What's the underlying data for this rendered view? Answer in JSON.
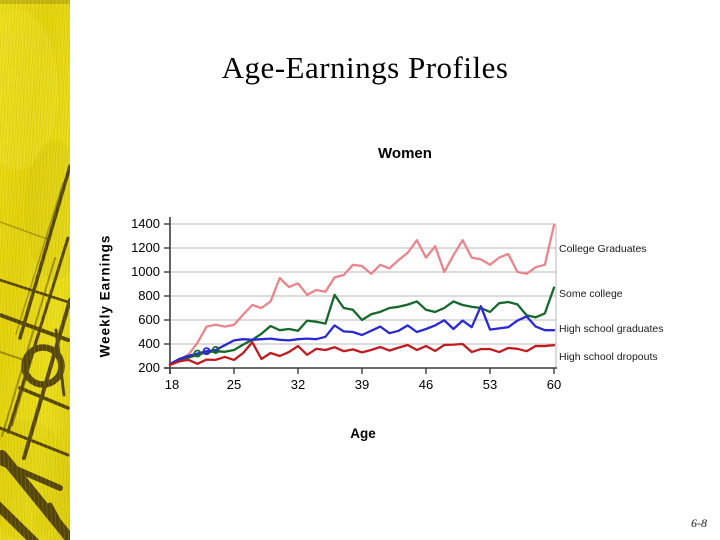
{
  "slide": {
    "title": "Age-Earnings Profiles",
    "page_number": "6-8"
  },
  "colors": {
    "slide_background": "#ffffff",
    "strip_yellow": "#e7d60f",
    "strip_line": "#342507",
    "gridline": "#b9b9b9",
    "axis": "#3c3c3c",
    "legend_text": "#1a1a1a"
  },
  "chart_data": {
    "type": "line",
    "title": "Women",
    "xlabel": "Age",
    "ylabel": "Weekly Earnings",
    "xlim": [
      18,
      60
    ],
    "ylim": [
      200,
      1400
    ],
    "x_ticks": [
      18,
      25,
      32,
      39,
      46,
      53,
      60
    ],
    "y_ticks": [
      1400,
      1200,
      1000,
      800,
      600,
      400,
      200
    ],
    "grid": "horizontal",
    "legend_position": "right-of-plot",
    "ages_start": 18,
    "series": [
      {
        "name": "College Graduates",
        "color": "#E9858B",
        "values": [
          230,
          270,
          310,
          410,
          545,
          560,
          545,
          560,
          645,
          725,
          700,
          755,
          950,
          875,
          905,
          810,
          850,
          835,
          955,
          975,
          1060,
          1050,
          985,
          1060,
          1030,
          1100,
          1160,
          1265,
          1120,
          1215,
          1000,
          1140,
          1265,
          1120,
          1105,
          1060,
          1120,
          1150,
          1000,
          985,
          1040,
          1060,
          1390
        ]
      },
      {
        "name": "Some college",
        "color": "#17682C",
        "values": [
          228,
          258,
          285,
          310,
          330,
          340,
          335,
          350,
          395,
          435,
          485,
          550,
          515,
          525,
          510,
          595,
          585,
          570,
          810,
          700,
          685,
          600,
          648,
          668,
          700,
          710,
          728,
          755,
          685,
          667,
          700,
          755,
          725,
          710,
          700,
          667,
          740,
          750,
          730,
          640,
          622,
          655,
          870
        ]
      },
      {
        "name": "High school graduates",
        "color": "#2A2AD4",
        "values": [
          232,
          275,
          300,
          320,
          340,
          350,
          390,
          430,
          440,
          435,
          440,
          445,
          435,
          430,
          440,
          445,
          440,
          460,
          555,
          505,
          500,
          475,
          510,
          545,
          490,
          510,
          555,
          500,
          525,
          555,
          598,
          525,
          595,
          540,
          715,
          520,
          530,
          540,
          595,
          630,
          545,
          515,
          515
        ]
      },
      {
        "name": "High school dropouts",
        "color": "#C01B20",
        "values": [
          226,
          255,
          268,
          235,
          270,
          268,
          292,
          267,
          325,
          415,
          275,
          325,
          300,
          333,
          383,
          310,
          360,
          350,
          373,
          340,
          355,
          330,
          350,
          375,
          345,
          370,
          392,
          350,
          383,
          342,
          392,
          395,
          400,
          333,
          358,
          358,
          333,
          367,
          360,
          340,
          383,
          383,
          390
        ]
      }
    ],
    "early_point_markers": {
      "on_series": "High school graduates",
      "ages": [
        21,
        22,
        23
      ],
      "ring_colors": [
        "#17682C",
        "#2A2AD4",
        "#17682C"
      ]
    }
  }
}
